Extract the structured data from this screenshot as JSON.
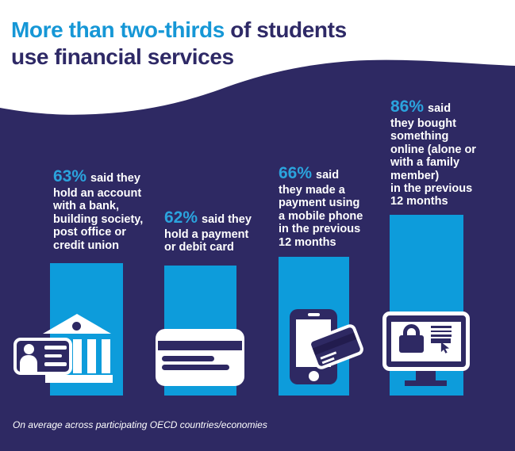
{
  "title": {
    "highlight": "More than two-thirds",
    "suffix": " of students",
    "line2": "use financial services"
  },
  "footer": "On average across participating OECD countries/economies",
  "colors": {
    "navy_background": "#2E2963",
    "bar_cyan": "#0D9CDB",
    "title_accent_blue": "#1697D6",
    "percent_blue": "#2BA3DD",
    "text_white": "#FFFFFF"
  },
  "columns": [
    {
      "pct": "63%",
      "pct_suffix": "said they",
      "lines": [
        "hold an account",
        "with a bank,",
        "building society,",
        "post office or",
        "credit union"
      ],
      "value": 63,
      "icon": "bank-with-id-card"
    },
    {
      "pct": "62%",
      "pct_suffix": "said they",
      "lines": [
        "hold a payment",
        "or debit card"
      ],
      "value": 62,
      "icon": "payment-card"
    },
    {
      "pct": "66%",
      "pct_suffix": "said",
      "lines": [
        "they made a",
        "payment using",
        "a mobile phone",
        "in the previous",
        "12 months"
      ],
      "value": 66,
      "icon": "mobile-phone-with-card"
    },
    {
      "pct": "86%",
      "pct_suffix": "said",
      "lines": [
        "they bought",
        "something",
        "online (alone or",
        "with a family",
        "member)",
        "in the previous",
        "12 months"
      ],
      "value": 86,
      "icon": "monitor-with-padlock"
    }
  ],
  "chart_data": {
    "type": "bar",
    "categories": [
      "hold an account with a bank, building society, post office or credit union",
      "hold a payment or debit card",
      "made a payment using a mobile phone in the previous 12 months",
      "bought something online (alone or with a family member) in the previous 12 months"
    ],
    "values": [
      63,
      62,
      66,
      86
    ],
    "unit": "%",
    "title": "More than two-thirds of students use financial services",
    "xlabel": "",
    "ylabel": "",
    "ylim": [
      0,
      100
    ],
    "grid": false,
    "legend": "none",
    "note": "On average across participating OECD countries/economies"
  }
}
